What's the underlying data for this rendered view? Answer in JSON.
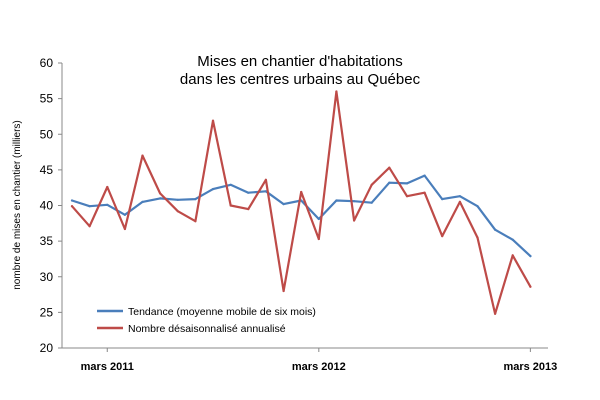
{
  "chart_data": {
    "type": "line",
    "title": [
      "Mises en chantier d'habitations",
      "dans les centres urbains au Québec"
    ],
    "ylabel": "nombre de mises en chantier (milliers)",
    "xlabel": "",
    "ylim": [
      20,
      60
    ],
    "yticks": [
      20,
      25,
      30,
      35,
      40,
      45,
      50,
      55,
      60
    ],
    "x": [
      "2011-01",
      "2011-02",
      "2011-03",
      "2011-04",
      "2011-05",
      "2011-06",
      "2011-07",
      "2011-08",
      "2011-09",
      "2011-10",
      "2011-11",
      "2011-12",
      "2012-01",
      "2012-02",
      "2012-03",
      "2012-04",
      "2012-05",
      "2012-06",
      "2012-07",
      "2012-08",
      "2012-09",
      "2012-10",
      "2012-11",
      "2012-12",
      "2013-01",
      "2013-02",
      "2013-03",
      "2013-04"
    ],
    "xtick_labels": [
      {
        "x": "2011-03",
        "label": "mars 2011"
      },
      {
        "x": "2012-03",
        "label": "mars 2012"
      },
      {
        "x": "2013-03",
        "label": "mars 2013"
      }
    ],
    "series": [
      {
        "name": "Tendance (moyenne mobile de six mois)",
        "color": "#4a7ebb",
        "values": [
          40.7,
          39.9,
          40.1,
          38.7,
          40.5,
          41.0,
          40.8,
          40.9,
          42.3,
          42.9,
          41.8,
          42.0,
          40.2,
          40.7,
          38.1,
          40.7,
          40.6,
          40.4,
          43.2,
          43.1,
          44.2,
          40.9,
          41.3,
          39.9,
          36.6,
          35.2,
          32.9,
          null
        ]
      },
      {
        "name": "Nombre désaisonnalisé annualisé",
        "color": "#be4b48",
        "values": [
          39.9,
          37.1,
          42.6,
          36.7,
          47.0,
          41.7,
          39.2,
          37.8,
          51.9,
          40.0,
          39.5,
          43.6,
          28.0,
          41.9,
          35.3,
          56.0,
          37.9,
          42.9,
          45.3,
          41.3,
          41.8,
          35.7,
          40.5,
          35.5,
          24.8,
          33.0,
          28.6,
          null
        ]
      }
    ],
    "legend_placement": "bottom-left",
    "grid": false
  }
}
